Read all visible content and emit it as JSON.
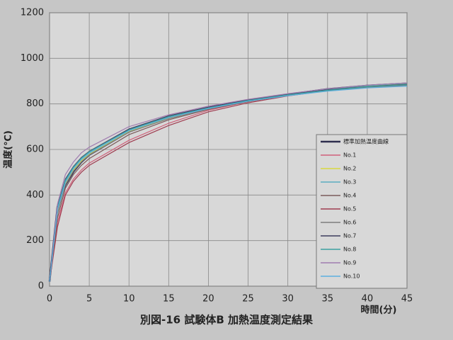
{
  "chart_data": {
    "type": "line",
    "title": "別図-16 試験体B 加熱温度測定結果",
    "xlabel": "時間(分)",
    "ylabel": "温度(℃)",
    "x": [
      0,
      1,
      2,
      3,
      4,
      5,
      10,
      15,
      20,
      25,
      30,
      35,
      40,
      45
    ],
    "xlim": [
      0,
      45
    ],
    "xticks": [
      0,
      5,
      10,
      15,
      20,
      25,
      30,
      35,
      40,
      45
    ],
    "ylim": [
      0,
      1200
    ],
    "yticks": [
      0,
      200,
      400,
      600,
      800,
      1000,
      1200
    ],
    "grid": true,
    "legend": "right",
    "series": [
      {
        "name": "標準加熱温度曲線",
        "color": "#2e2e4e",
        "values": [
          20,
          349,
          444,
          502,
          544,
          576,
          678,
          739,
          781,
          815,
          842,
          865,
          880,
          890
        ]
      },
      {
        "name": "No.1",
        "color": "#d0607a",
        "values": [
          20,
          280,
          410,
          470,
          510,
          540,
          640,
          715,
          772,
          810,
          838,
          860,
          876,
          886
        ]
      },
      {
        "name": "No.2",
        "color": "#d8d840",
        "values": [
          20,
          330,
          450,
          510,
          550,
          580,
          680,
          738,
          778,
          812,
          840,
          862,
          878,
          888
        ]
      },
      {
        "name": "No.3",
        "color": "#5aaec0",
        "values": [
          20,
          340,
          460,
          520,
          560,
          588,
          688,
          745,
          785,
          818,
          843,
          865,
          880,
          890
        ]
      },
      {
        "name": "No.4",
        "color": "#7a5a5a",
        "values": [
          20,
          300,
          430,
          490,
          530,
          560,
          665,
          730,
          776,
          810,
          838,
          860,
          875,
          885
        ]
      },
      {
        "name": "No.5",
        "color": "#a03c50",
        "values": [
          20,
          260,
          400,
          460,
          500,
          530,
          630,
          705,
          765,
          805,
          835,
          858,
          872,
          882
        ]
      },
      {
        "name": "No.6",
        "color": "#7e7e7e",
        "values": [
          20,
          320,
          445,
          505,
          545,
          575,
          676,
          735,
          778,
          812,
          838,
          858,
          872,
          880
        ]
      },
      {
        "name": "No.7",
        "color": "#3e3e5e",
        "values": [
          20,
          350,
          470,
          525,
          565,
          592,
          690,
          748,
          786,
          818,
          842,
          862,
          876,
          886
        ]
      },
      {
        "name": "No.8",
        "color": "#3ca0a0",
        "values": [
          20,
          345,
          465,
          522,
          562,
          590,
          686,
          744,
          782,
          815,
          840,
          860,
          875,
          884
        ]
      },
      {
        "name": "No.9",
        "color": "#a07cb0",
        "values": [
          20,
          360,
          490,
          545,
          585,
          610,
          700,
          752,
          790,
          820,
          845,
          866,
          882,
          892
        ]
      },
      {
        "name": "No.10",
        "color": "#5cb0e0",
        "values": [
          20,
          335,
          455,
          515,
          555,
          583,
          682,
          740,
          780,
          812,
          836,
          856,
          870,
          878
        ]
      }
    ]
  }
}
